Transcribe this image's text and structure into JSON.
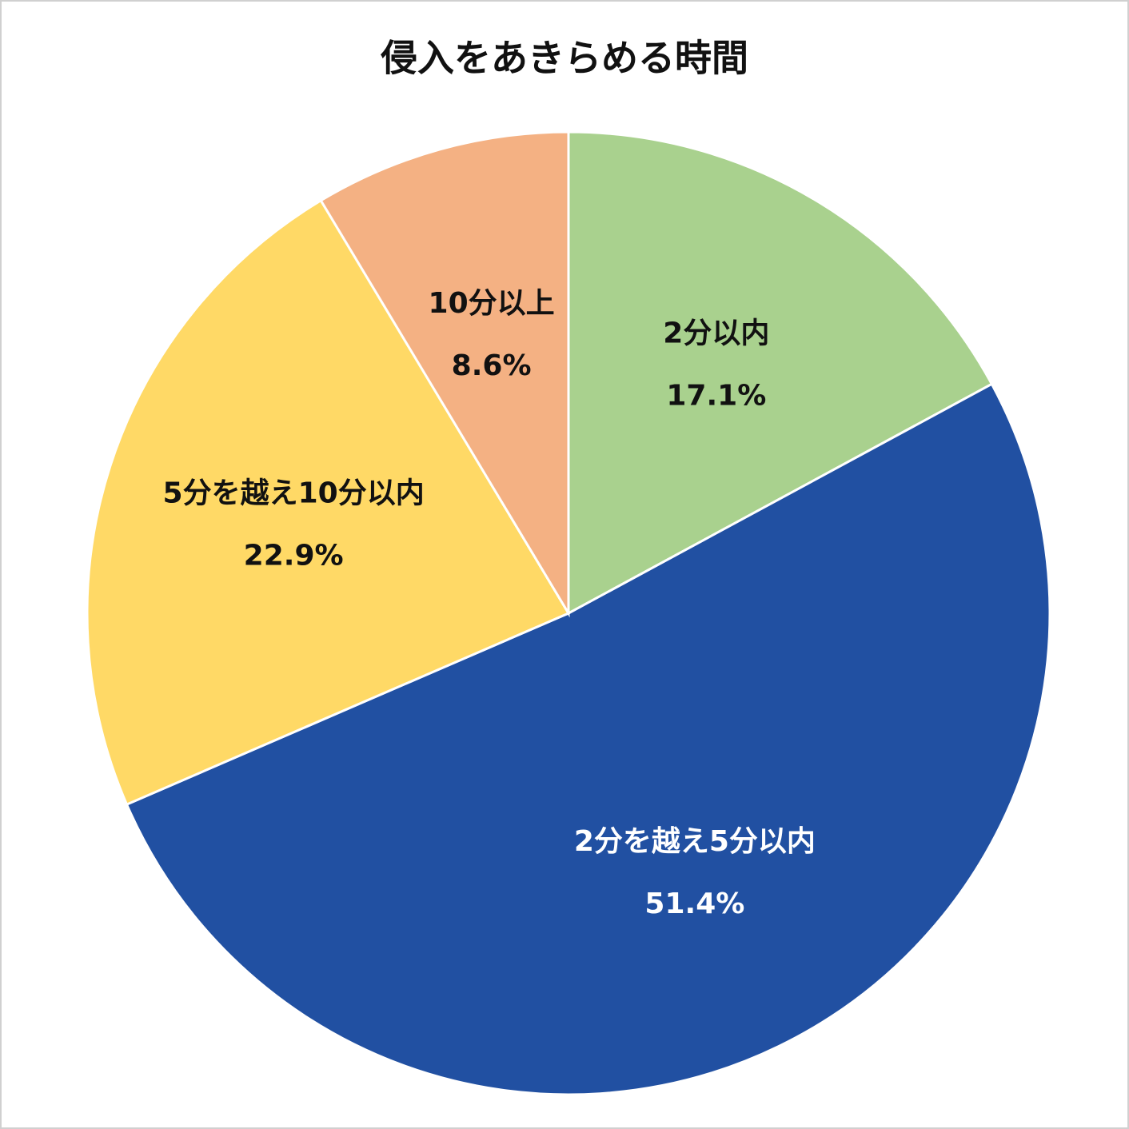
{
  "chart_data": {
    "type": "pie",
    "title": "侵入をあきらめる時間",
    "categories": [
      "2分以内",
      "2分を越え5分以内",
      "5分を越え10分以内",
      "10分以上"
    ],
    "values": [
      17.1,
      51.4,
      22.9,
      8.6
    ],
    "value_labels": [
      "17.1%",
      "51.4%",
      "22.9%",
      "8.6%"
    ],
    "colors": [
      "#a9d18e",
      "#2150a2",
      "#ffd966",
      "#f4b183"
    ]
  }
}
